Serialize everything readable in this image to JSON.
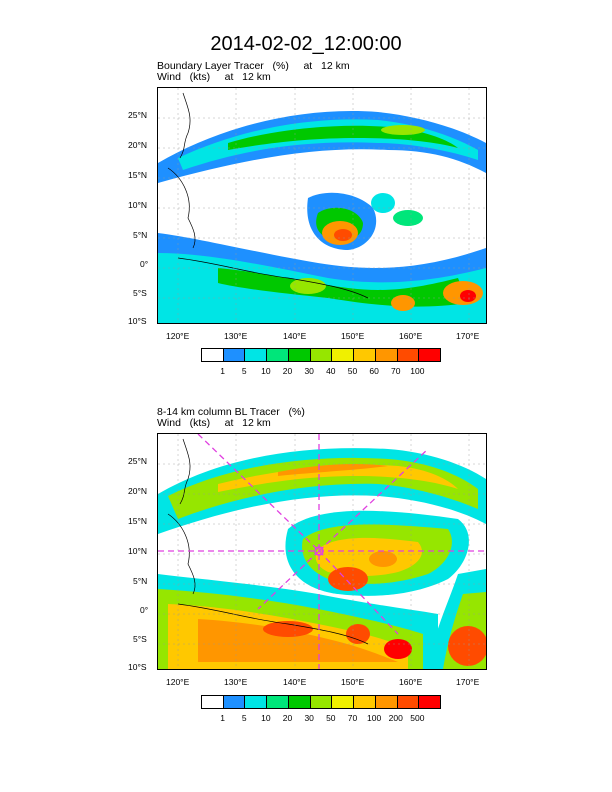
{
  "title": "2014-02-02_12:00:00",
  "panel1": {
    "line1": "Boundary Layer Tracer   (%)     at   12 km",
    "line2": "Wind   (kts)     at   12 km",
    "colorbar": {
      "labels": [
        "1",
        "5",
        "10",
        "20",
        "30",
        "40",
        "50",
        "60",
        "70",
        "100"
      ],
      "colors": [
        "#ffffff",
        "#1e90ff",
        "#00e5e5",
        "#00e67a",
        "#00c800",
        "#96e600",
        "#f0f000",
        "#ffc800",
        "#ff9600",
        "#ff4b00",
        "#ff0000"
      ]
    }
  },
  "panel2": {
    "line1": "8-14 km column BL Tracer   (%)",
    "line2": "Wind   (kts)     at   12 km",
    "colorbar": {
      "labels": [
        "1",
        "5",
        "10",
        "20",
        "30",
        "50",
        "70",
        "100",
        "200",
        "500"
      ],
      "colors": [
        "#ffffff",
        "#1e90ff",
        "#00e5e5",
        "#00e67a",
        "#00c800",
        "#96e600",
        "#f0f000",
        "#ffc800",
        "#ff9600",
        "#ff4b00",
        "#ff0000"
      ]
    }
  },
  "axes": {
    "lat_labels": [
      "25°N",
      "20°N",
      "15°N",
      "10°N",
      "5°N",
      "0°",
      "5°S",
      "10°S"
    ],
    "lon_labels": [
      "120°E",
      "130°E",
      "140°E",
      "150°E",
      "160°E",
      "170°E"
    ]
  },
  "colors": {
    "marker": "#e040e0",
    "outline": "#000000"
  }
}
